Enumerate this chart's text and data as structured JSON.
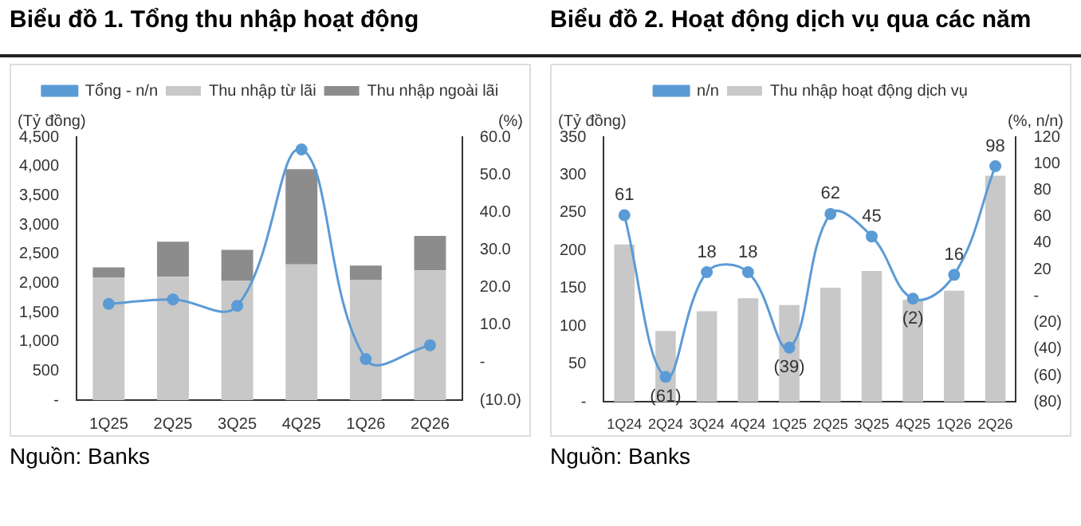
{
  "chart_data": [
    {
      "type": "bar",
      "title": "Biểu đồ 1. Tổng thu nhập hoạt động",
      "ylabel": "(Tỷ đồng)",
      "y2label": "(%)",
      "categories": [
        "1Q25",
        "2Q25",
        "3Q25",
        "4Q25",
        "1Q26",
        "2Q26"
      ],
      "stacked": true,
      "legend": "top",
      "grid": false,
      "series": [
        {
          "name": "Thu nhập từ lãi",
          "color": "#c8c8c8",
          "values": [
            2100,
            2110,
            2040,
            2320,
            2060,
            2220
          ]
        },
        {
          "name": "Thu nhập ngoài lãi",
          "color": "#8c8c8c",
          "values": [
            170,
            600,
            530,
            1630,
            240,
            590
          ]
        },
        {
          "name": "Tổng - n/n",
          "type": "line",
          "axis": "y2",
          "color": "#5b9bd5",
          "marker": "circle",
          "values": [
            15.6,
            16.8,
            15.1,
            56.7,
            0.9,
            4.6
          ]
        }
      ],
      "ylim": [
        0,
        4500
      ],
      "yticks": [
        {
          "value": 0,
          "label": "-"
        },
        {
          "value": 500,
          "label": "500"
        },
        {
          "value": 1000,
          "label": "1,000"
        },
        {
          "value": 1500,
          "label": "1,500"
        },
        {
          "value": 2000,
          "label": "2,000"
        },
        {
          "value": 2500,
          "label": "2,500"
        },
        {
          "value": 3000,
          "label": "3,000"
        },
        {
          "value": 3500,
          "label": "3,500"
        },
        {
          "value": 4000,
          "label": "4,000"
        },
        {
          "value": 4500,
          "label": "4,500"
        }
      ],
      "y2lim": [
        -10,
        60
      ],
      "y2ticks": [
        {
          "value": -10,
          "label": "(10.0)"
        },
        {
          "value": 0,
          "label": "-"
        },
        {
          "value": 10,
          "label": "10.0"
        },
        {
          "value": 20,
          "label": "20.0"
        },
        {
          "value": 30,
          "label": "30.0"
        },
        {
          "value": 40,
          "label": "40.0"
        },
        {
          "value": 50,
          "label": "50.0"
        },
        {
          "value": 60,
          "label": "60.0"
        }
      ],
      "annotations": [
        "Nguồn: Banks"
      ]
    },
    {
      "type": "bar",
      "title": "Biểu đồ 2. Hoạt động dịch vụ qua các năm",
      "ylabel": "(Tỷ đồng)",
      "y2label": "(%, n/n)",
      "categories": [
        "1Q24",
        "2Q24",
        "3Q24",
        "4Q24",
        "1Q25",
        "2Q25",
        "3Q25",
        "4Q25",
        "1Q26",
        "2Q26"
      ],
      "legend": "top",
      "grid": false,
      "series": [
        {
          "name": "Thu nhập hoạt động dịch vụ",
          "color": "#c8c8c8",
          "values": [
            208,
            94,
            120,
            137,
            128,
            151,
            173,
            135,
            147,
            299
          ]
        },
        {
          "name": "n/n",
          "type": "line",
          "axis": "y2",
          "color": "#5b9bd5",
          "marker": "circle",
          "values": [
            61,
            -61,
            18,
            18,
            -39,
            62,
            45,
            -2,
            16,
            98
          ],
          "value_labels": [
            "61",
            "(61)",
            "18",
            "18",
            "(39)",
            "62",
            "45",
            "(2)",
            "16",
            "98"
          ]
        }
      ],
      "ylim": [
        0,
        350
      ],
      "yticks": [
        {
          "value": 0,
          "label": "-"
        },
        50,
        100,
        150,
        200,
        250,
        300,
        350
      ],
      "y2lim": [
        -80,
        120
      ],
      "y2ticks": [
        {
          "value": -80,
          "label": "(80)"
        },
        {
          "value": -60,
          "label": "(60)"
        },
        {
          "value": -40,
          "label": "(40)"
        },
        {
          "value": -20,
          "label": "(20)"
        },
        {
          "value": 0,
          "label": "-"
        },
        20,
        40,
        60,
        80,
        100,
        120
      ],
      "annotations": [
        "Nguồn: Banks"
      ]
    }
  ]
}
